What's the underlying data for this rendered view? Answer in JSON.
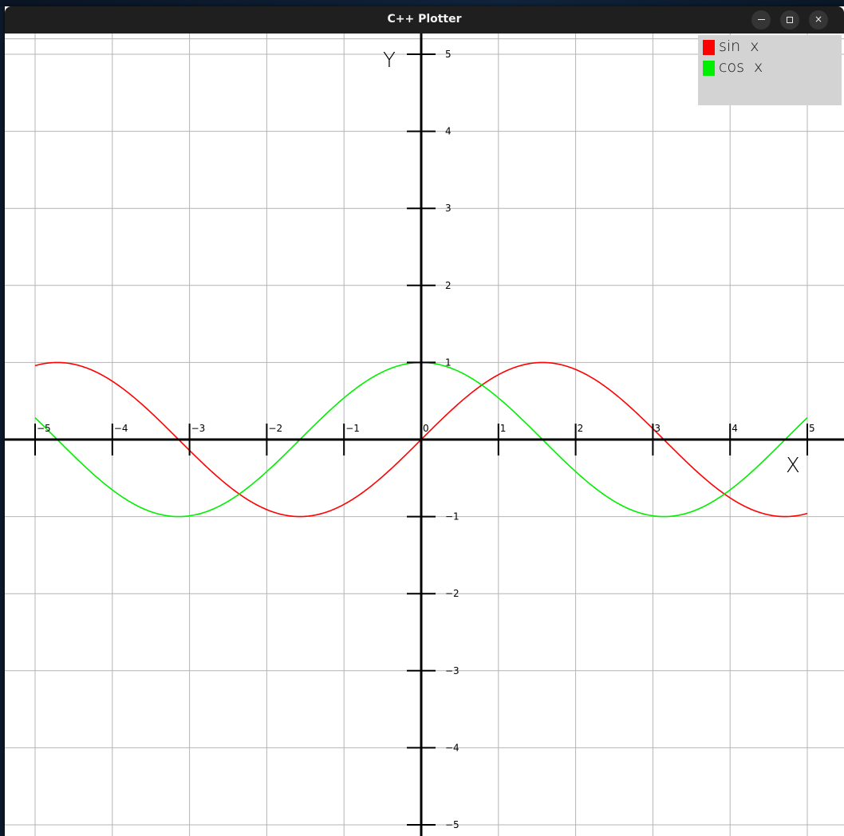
{
  "window": {
    "title": "C++ Plotter",
    "controls": [
      {
        "name": "minimize",
        "icon": "minimize-icon"
      },
      {
        "name": "maximize",
        "icon": "maximize-icon"
      },
      {
        "name": "close",
        "icon": "close-icon",
        "glyph": "×"
      }
    ]
  },
  "chart_data": {
    "type": "line",
    "xlabel": "X",
    "ylabel": "Y",
    "xlim": [
      -5,
      5
    ],
    "ylim": [
      -5,
      5
    ],
    "grid": true,
    "x_ticks": [
      "-5",
      "-4",
      "-3",
      "-2",
      "-1",
      "0",
      "1",
      "2",
      "3",
      "4",
      "5"
    ],
    "y_ticks": [
      "5",
      "4",
      "3",
      "2",
      "1",
      "-1",
      "-2",
      "-3",
      "-4",
      "-5"
    ],
    "legend_position": "top-right",
    "series": [
      {
        "name": "sin  x",
        "function": "sin",
        "color": "#ff0000",
        "x": [
          -5,
          -4.5,
          -4,
          -3.5,
          -3,
          -2.5,
          -2,
          -1.5,
          -1,
          -0.5,
          0,
          0.5,
          1,
          1.5,
          2,
          2.5,
          3,
          3.5,
          4,
          4.5,
          5
        ],
        "values": [
          0.959,
          0.978,
          0.757,
          0.351,
          -0.141,
          -0.598,
          -0.909,
          -0.997,
          -0.841,
          -0.479,
          0,
          0.479,
          0.841,
          0.997,
          0.909,
          0.598,
          0.141,
          -0.351,
          -0.757,
          -0.978,
          -0.959
        ]
      },
      {
        "name": "cos  x",
        "function": "cos",
        "color": "#00ee00",
        "x": [
          -5,
          -4.5,
          -4,
          -3.5,
          -3,
          -2.5,
          -2,
          -1.5,
          -1,
          -0.5,
          0,
          0.5,
          1,
          1.5,
          2,
          2.5,
          3,
          3.5,
          4,
          4.5,
          5
        ],
        "values": [
          0.284,
          -0.211,
          -0.654,
          -0.936,
          -0.99,
          -0.801,
          -0.416,
          0.071,
          0.54,
          0.878,
          1,
          0.878,
          0.54,
          0.071,
          -0.416,
          -0.801,
          -0.99,
          -0.936,
          -0.654,
          -0.211,
          0.284
        ]
      }
    ]
  },
  "colors": {
    "titlebar": "#1f1f1f",
    "grid": "#b4b4b4",
    "axis": "#000000",
    "legend_bg": "#d3d3d3"
  }
}
